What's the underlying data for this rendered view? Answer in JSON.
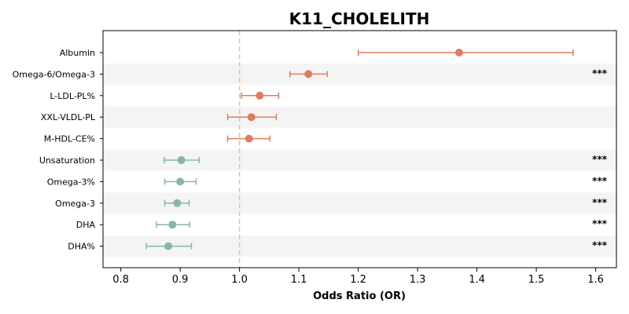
{
  "chart_data": {
    "type": "forest",
    "title": "K11_CHOLELITH",
    "xlabel": "Odds Ratio (OR)",
    "xlim": [
      0.77,
      1.635
    ],
    "xticks": [
      "0.8",
      "0.9",
      "1.0",
      "1.1",
      "1.2",
      "1.3",
      "1.4",
      "1.5",
      "1.6"
    ],
    "reference_line": 1.0,
    "grid": false,
    "colors": {
      "positive": "#e07b5f",
      "negative": "#86b89f",
      "reference": "#f0c07a",
      "band": "#f4f4f4"
    },
    "rows": [
      {
        "label": "Albumin",
        "or": 1.37,
        "low": 1.2,
        "high": 1.562,
        "sig": ""
      },
      {
        "label": "Omega-6/Omega-3",
        "or": 1.116,
        "low": 1.085,
        "high": 1.148,
        "sig": "***"
      },
      {
        "label": "L-LDL-PL%",
        "or": 1.034,
        "low": 1.003,
        "high": 1.066,
        "sig": ""
      },
      {
        "label": "XXL-VLDL-PL",
        "or": 1.02,
        "low": 0.98,
        "high": 1.062,
        "sig": ""
      },
      {
        "label": "M-HDL-CE%",
        "or": 1.016,
        "low": 0.98,
        "high": 1.051,
        "sig": ""
      },
      {
        "label": "Unsaturation",
        "or": 0.902,
        "low": 0.873,
        "high": 0.932,
        "sig": "***"
      },
      {
        "label": "Omega-3%",
        "or": 0.9,
        "low": 0.874,
        "high": 0.927,
        "sig": "***"
      },
      {
        "label": "Omega-3",
        "or": 0.895,
        "low": 0.874,
        "high": 0.915,
        "sig": "***"
      },
      {
        "label": "DHA",
        "or": 0.887,
        "low": 0.86,
        "high": 0.916,
        "sig": "***"
      },
      {
        "label": "DHA%",
        "or": 0.88,
        "low": 0.843,
        "high": 0.919,
        "sig": "***"
      }
    ]
  }
}
